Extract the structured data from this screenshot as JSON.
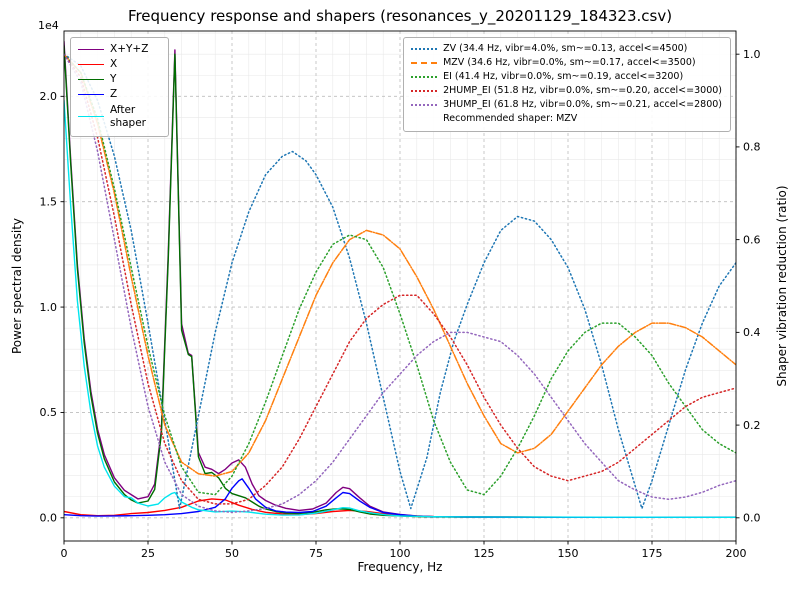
{
  "chart_data": {
    "type": "line",
    "title": "Frequency response and shapers (resonances_y_20201129_184323.csv)",
    "xlabel": "Frequency, Hz",
    "xlim": [
      0,
      200
    ],
    "x_ticks": [
      0,
      25,
      50,
      75,
      100,
      125,
      150,
      175,
      200
    ],
    "x_tick_labels": [
      "0",
      "25",
      "50",
      "75",
      "100",
      "125",
      "150",
      "175",
      "200"
    ],
    "grid": "major+minor",
    "left_axis": {
      "label": "Power spectral density",
      "offset_text": "1e4",
      "ticks": [
        0,
        5000,
        10000,
        15000,
        20000
      ],
      "tick_labels": [
        "0.0",
        "0.5",
        "1.0",
        "1.5",
        "2.0"
      ],
      "range": [
        -1100,
        23100
      ]
    },
    "right_axis": {
      "label": "Shaper vibration reduction (ratio)",
      "ticks": [
        0,
        0.2,
        0.4,
        0.6,
        0.8,
        1.0
      ],
      "tick_labels": [
        "0.0",
        "0.2",
        "0.4",
        "0.6",
        "0.8",
        "1.0"
      ],
      "range": [
        -0.05,
        1.05
      ]
    },
    "psd_series": [
      {
        "name": "X+Y+Z",
        "color": "#800080",
        "style": "solid",
        "axis": "left",
        "x": [
          0,
          2,
          4,
          6,
          8,
          10,
          12,
          15,
          18,
          20,
          22,
          25,
          27,
          29,
          31,
          33,
          35,
          37,
          38,
          40,
          42,
          44,
          46,
          48,
          50,
          52,
          54,
          56,
          58,
          60,
          63,
          66,
          70,
          74,
          78,
          81,
          83,
          85,
          88,
          91,
          95,
          100,
          105,
          110,
          120,
          130,
          150,
          170,
          200
        ],
        "y": [
          22600,
          17000,
          12000,
          8500,
          6000,
          4200,
          3000,
          1900,
          1300,
          1100,
          900,
          1000,
          1600,
          4200,
          12500,
          22200,
          9200,
          7800,
          7700,
          3100,
          2400,
          2300,
          2100,
          2300,
          2600,
          2750,
          2400,
          1600,
          1050,
          820,
          600,
          450,
          350,
          420,
          700,
          1200,
          1450,
          1380,
          950,
          550,
          280,
          160,
          90,
          60,
          45,
          35,
          30,
          30,
          30
        ]
      },
      {
        "name": "X",
        "color": "#ff0000",
        "style": "solid",
        "axis": "left",
        "x": [
          0,
          5,
          10,
          15,
          20,
          25,
          30,
          35,
          40,
          44,
          48,
          52,
          56,
          60,
          65,
          70,
          75,
          80,
          85,
          90,
          95,
          100,
          110,
          120,
          140,
          160,
          180,
          200
        ],
        "y": [
          300,
          150,
          100,
          120,
          200,
          250,
          350,
          500,
          800,
          900,
          850,
          600,
          400,
          260,
          180,
          150,
          200,
          300,
          350,
          300,
          200,
          120,
          60,
          40,
          30,
          25,
          25,
          25
        ]
      },
      {
        "name": "Y",
        "color": "#006d00",
        "style": "solid",
        "axis": "left",
        "x": [
          0,
          2,
          4,
          6,
          8,
          10,
          12,
          15,
          18,
          20,
          22,
          25,
          27,
          29,
          31,
          33,
          35,
          37,
          38,
          40,
          42,
          44,
          46,
          48,
          50,
          52,
          54,
          56,
          58,
          60,
          63,
          66,
          70,
          74,
          78,
          81,
          83,
          85,
          88,
          91,
          95,
          100,
          105,
          110,
          120,
          130,
          150,
          170,
          200
        ],
        "y": [
          22400,
          16800,
          11800,
          8300,
          5800,
          4000,
          2800,
          1700,
          1100,
          850,
          700,
          800,
          1350,
          4000,
          12200,
          22000,
          8900,
          7750,
          7650,
          2900,
          2100,
          2150,
          1900,
          1400,
          1150,
          1050,
          950,
          750,
          550,
          420,
          300,
          230,
          210,
          260,
          380,
          430,
          420,
          400,
          280,
          180,
          120,
          90,
          60,
          45,
          38,
          32,
          30,
          30,
          30
        ]
      },
      {
        "name": "Z",
        "color": "#0000ff",
        "style": "solid",
        "axis": "left",
        "x": [
          0,
          5,
          10,
          15,
          20,
          25,
          30,
          35,
          40,
          45,
          48,
          50,
          52,
          53,
          55,
          57,
          60,
          63,
          66,
          70,
          74,
          78,
          81,
          83,
          85,
          88,
          91,
          95,
          100,
          105,
          110,
          120,
          140,
          160,
          200
        ],
        "y": [
          150,
          100,
          80,
          90,
          100,
          120,
          150,
          200,
          300,
          500,
          900,
          1400,
          1750,
          1850,
          1400,
          900,
          500,
          330,
          270,
          250,
          300,
          550,
          950,
          1200,
          1150,
          800,
          500,
          250,
          150,
          80,
          55,
          40,
          30,
          25,
          25
        ]
      },
      {
        "name": "After shaper",
        "color": "#00e5ee",
        "style": "solid",
        "axis": "left",
        "x": [
          0,
          2,
          4,
          6,
          8,
          10,
          12,
          15,
          18,
          20,
          22,
          25,
          28,
          30,
          32,
          33,
          35,
          38,
          40,
          45,
          50,
          55,
          60,
          65,
          70,
          75,
          80,
          83,
          85,
          88,
          92,
          96,
          100,
          110,
          120,
          140,
          160,
          200
        ],
        "y": [
          19800,
          14800,
          10300,
          7200,
          5000,
          3400,
          2400,
          1500,
          1000,
          950,
          700,
          560,
          650,
          950,
          1150,
          1200,
          750,
          500,
          380,
          280,
          320,
          270,
          170,
          130,
          140,
          220,
          380,
          480,
          460,
          330,
          220,
          140,
          90,
          55,
          42,
          32,
          28,
          25
        ]
      }
    ],
    "shaper_x": [
      0,
      5,
      10,
      15,
      20,
      25,
      30,
      35,
      40,
      45,
      50,
      55,
      60,
      65,
      70,
      75,
      80,
      85,
      90,
      95,
      100,
      105,
      110,
      115,
      120,
      125,
      130,
      135,
      140,
      145,
      150,
      155,
      160,
      165,
      170,
      175,
      180,
      185,
      190,
      195,
      200
    ],
    "shaper_series": [
      {
        "name": "ZV",
        "label": "ZV (34.4 Hz, vibr=4.0%, sm~=0.13, accel<=4500)",
        "color": "#1f77b4",
        "style": "dotted",
        "axis": "right",
        "x": [
          0,
          5,
          10,
          15,
          20,
          25,
          30,
          34.4,
          40,
          45,
          50,
          55,
          60,
          65,
          68,
          72,
          75,
          80,
          85,
          90,
          95,
          100,
          103.2,
          108,
          112,
          116,
          120,
          125,
          130,
          135,
          140,
          145,
          150,
          155,
          160,
          165,
          172,
          175,
          180,
          185,
          190,
          195,
          200
        ],
        "y": [
          1.0,
          0.975,
          0.9,
          0.78,
          0.62,
          0.42,
          0.21,
          0.02,
          0.22,
          0.4,
          0.55,
          0.66,
          0.74,
          0.78,
          0.79,
          0.77,
          0.74,
          0.67,
          0.56,
          0.42,
          0.26,
          0.1,
          0.02,
          0.13,
          0.27,
          0.38,
          0.46,
          0.55,
          0.62,
          0.65,
          0.64,
          0.6,
          0.54,
          0.45,
          0.33,
          0.19,
          0.02,
          0.08,
          0.2,
          0.32,
          0.42,
          0.5,
          0.55
        ]
      },
      {
        "name": "MZV",
        "label": "MZV (34.6 Hz, vibr=0.0%, sm~=0.17, accel<=3500)",
        "color": "#ff7f0e",
        "style": "dashdot",
        "axis": "right",
        "y": [
          1.0,
          0.96,
          0.85,
          0.7,
          0.52,
          0.35,
          0.2,
          0.12,
          0.095,
          0.09,
          0.1,
          0.14,
          0.21,
          0.3,
          0.39,
          0.48,
          0.55,
          0.6,
          0.62,
          0.61,
          0.58,
          0.52,
          0.45,
          0.37,
          0.29,
          0.22,
          0.16,
          0.14,
          0.15,
          0.18,
          0.23,
          0.28,
          0.33,
          0.37,
          0.4,
          0.42,
          0.42,
          0.41,
          0.39,
          0.36,
          0.33
        ]
      },
      {
        "name": "EI",
        "label": "EI (41.4 Hz, vibr=0.0%, sm~=0.19, accel<=3200)",
        "color": "#2ca02c",
        "style": "dotted",
        "axis": "right",
        "y": [
          1.0,
          0.96,
          0.86,
          0.71,
          0.54,
          0.37,
          0.22,
          0.11,
          0.055,
          0.05,
          0.09,
          0.16,
          0.25,
          0.35,
          0.45,
          0.53,
          0.59,
          0.61,
          0.6,
          0.54,
          0.44,
          0.33,
          0.21,
          0.12,
          0.06,
          0.05,
          0.09,
          0.15,
          0.22,
          0.3,
          0.36,
          0.4,
          0.42,
          0.42,
          0.39,
          0.35,
          0.29,
          0.24,
          0.19,
          0.16,
          0.14
        ]
      },
      {
        "name": "2HUMP_EI",
        "label": "2HUMP_EI (51.8 Hz, vibr=0.0%, sm~=0.20, accel<=3000)",
        "color": "#d62728",
        "style": "dotted",
        "axis": "right",
        "y": [
          1.0,
          0.95,
          0.82,
          0.65,
          0.46,
          0.29,
          0.16,
          0.08,
          0.04,
          0.03,
          0.03,
          0.04,
          0.07,
          0.11,
          0.17,
          0.24,
          0.31,
          0.38,
          0.43,
          0.46,
          0.48,
          0.48,
          0.44,
          0.39,
          0.33,
          0.26,
          0.2,
          0.15,
          0.11,
          0.09,
          0.08,
          0.09,
          0.1,
          0.12,
          0.15,
          0.18,
          0.21,
          0.24,
          0.26,
          0.27,
          0.28
        ]
      },
      {
        "name": "3HUMP_EI",
        "label": "3HUMP_EI (61.8 Hz, vibr=0.0%, sm~=0.21, accel<=2800)",
        "color": "#9467bd",
        "style": "dotted",
        "axis": "right",
        "y": [
          1.0,
          0.94,
          0.79,
          0.6,
          0.41,
          0.24,
          0.12,
          0.05,
          0.025,
          0.015,
          0.012,
          0.015,
          0.02,
          0.03,
          0.05,
          0.08,
          0.12,
          0.17,
          0.22,
          0.27,
          0.31,
          0.35,
          0.38,
          0.4,
          0.4,
          0.39,
          0.38,
          0.35,
          0.31,
          0.26,
          0.21,
          0.16,
          0.12,
          0.08,
          0.06,
          0.045,
          0.04,
          0.045,
          0.055,
          0.07,
          0.08
        ]
      }
    ],
    "recommended_label": "Recommended shaper: MZV"
  }
}
